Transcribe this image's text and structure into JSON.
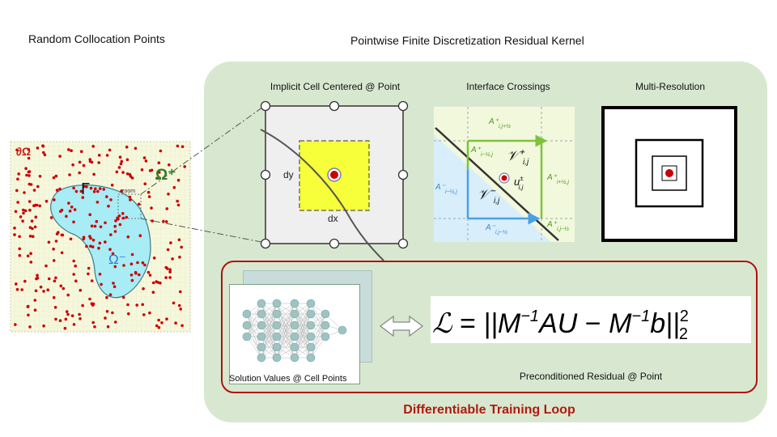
{
  "titles": {
    "left": "Random Collocation Points",
    "kernel": "Pointwise Finite Discretization Residual Kernel"
  },
  "domain_panel": {
    "boundary_label": "∂Ω",
    "omega_plus": "Ω⁺",
    "omega_minus": "Ω⁻",
    "interface": "Γ",
    "zoom": "zoom"
  },
  "panels": {
    "cell": {
      "title": "Implicit Cell Centered @ Point",
      "dy": "dy",
      "dx": "dx"
    },
    "interface": {
      "title": "Interface Crossings",
      "a_top_plus": "A⁺",
      "a_top_plus_sub": "i,j+½",
      "a_left_plus": "A⁺",
      "a_left_plus_sub": "i−½,j",
      "v_plus": "𝒱⁺",
      "v_plus_sub": "i,j",
      "u": "u",
      "u_sup": "±",
      "u_sub": "i,j",
      "a_right_plus": "A⁺",
      "a_right_plus_sub": "i+½,j",
      "a_left_minus": "A⁻",
      "a_left_minus_sub": "i−½,j",
      "v_minus": "𝒱⁻",
      "v_minus_sub": "i,j",
      "a_bottom_minus": "A⁻",
      "a_bottom_minus_sub": "i,j−½",
      "a_br_plus": "A⁺",
      "a_br_plus_sub": "i,j−½"
    },
    "multires": {
      "title": "Multi-Resolution"
    }
  },
  "loop": {
    "title": "Differentiable Training Loop",
    "nn_caption": "Solution Values @ Cell Points",
    "residual_caption": "Preconditioned Residual @ Point",
    "loss_formula": "ℒ = ||M⁻¹AU − M⁻¹b||₂²"
  },
  "colors": {
    "kernel_bg": "#d8e8d0",
    "loop_border": "#b01010",
    "loop_title": "#b01a10",
    "point_red": "#cc0000",
    "omega_minus_fill": "#a8ecf5",
    "domain_bg": "#f6f8dd",
    "cell_yellow": "#f6ff3a",
    "interface_green": "#9bd14a",
    "interface_blue": "#78b8ee"
  }
}
